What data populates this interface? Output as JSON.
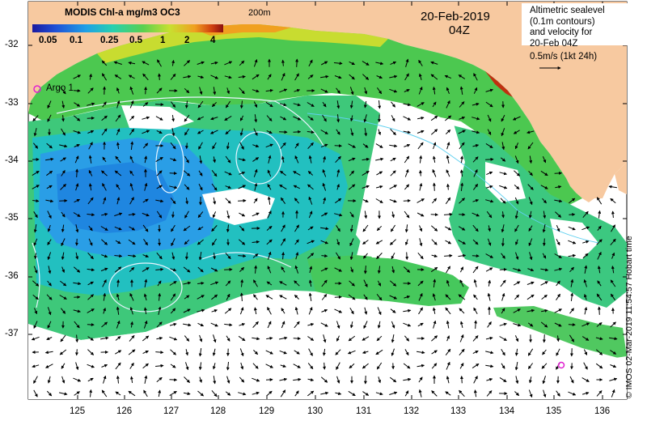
{
  "colorbar": {
    "title": "MODIS Chl-a mg/m3 OC3",
    "ticks": [
      "0.05",
      "0.1",
      "0.25",
      "0.5",
      "1",
      "2",
      "4"
    ],
    "colors": [
      "#1a1aa0",
      "#1f4fd6",
      "#1fa0e6",
      "#27d0b0",
      "#59d050",
      "#c8e030",
      "#f0a020",
      "#d04010",
      "#8a1010"
    ]
  },
  "contour_label": "200m",
  "date": "20-Feb-2019",
  "time": "04Z",
  "legend": {
    "lines": [
      "Altimetric sealevel",
      "(0.1m contours)",
      "and velocity for",
      "20-Feb 04Z"
    ],
    "velocity_scale": "0.5m/s (1kt 24h)"
  },
  "argo": {
    "label": "Argo 1",
    "color": "#e020d0"
  },
  "credit": "© IMOS 02-Mar-2019 11:54:57 Hobart time",
  "axes": {
    "latitudes": [
      "-32",
      "-33",
      "-34",
      "-35",
      "-36",
      "-37"
    ],
    "longitudes": [
      "125",
      "126",
      "127",
      "128",
      "129",
      "130",
      "131",
      "132",
      "133",
      "134",
      "135",
      "136"
    ]
  },
  "colors": {
    "land": "#f7c9a0",
    "ocean_nodata": "#ffffff",
    "contour": "#e8f4ff",
    "arrows": "#000000",
    "shelf_contour": "#60d0f0"
  }
}
